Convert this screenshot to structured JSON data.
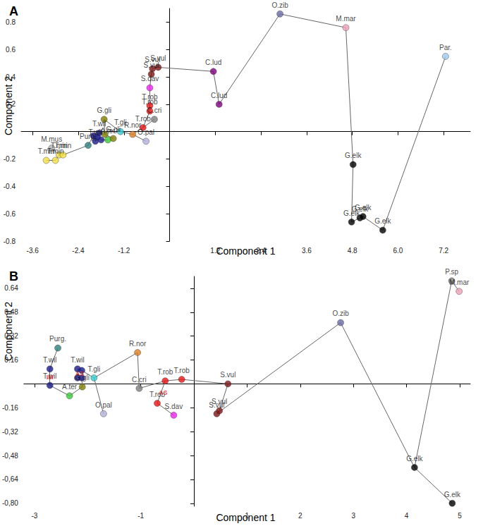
{
  "chart_data": [
    {
      "type": "scatter",
      "title": "A",
      "x_label": "Component 1",
      "y_label": "Component 2",
      "grid": false,
      "xlim": [
        -3.9,
        7.9
      ],
      "ylim": [
        -0.8,
        0.9
      ],
      "xticks": [
        -3.6,
        -2.4,
        -1.2,
        1.2,
        2.4,
        3.6,
        4.8,
        {
          "value": 6,
          "label": "6.0"
        },
        7.2
      ],
      "yticks": [
        -0.8,
        -0.6,
        -0.4,
        -0.2,
        0.2,
        0.4,
        0.6,
        0.8
      ],
      "points": [
        {
          "label": "T.min",
          "x": -2.9,
          "y": -0.17,
          "color": "#f2e040"
        },
        {
          "label": "T.min",
          "x": -3.24,
          "y": -0.21,
          "color": "#f2e040"
        },
        {
          "label": "T.min",
          "x": -3.0,
          "y": -0.21,
          "color": "#f2e040"
        },
        {
          "label": "T.min",
          "x": -2.8,
          "y": -0.17,
          "color": "#f2e040"
        },
        {
          "label": "M.mus",
          "x": -3.1,
          "y": -0.12,
          "color": "#b4b4b4"
        },
        {
          "label": "Purg.",
          "x": -2.14,
          "y": -0.1,
          "color": "#2a8080"
        },
        {
          "label": "T.wil",
          "x": -1.95,
          "y": -0.07,
          "color": "#1a1a8c"
        },
        {
          "label": "T.wil",
          "x": -1.85,
          "y": -0.01,
          "color": "#1a1a8c"
        },
        {
          "label": null,
          "x": -1.9,
          "y": -0.04,
          "color": "#1a1a8c"
        },
        {
          "label": null,
          "x": -2.0,
          "y": -0.03,
          "color": "#1a1a8c"
        },
        {
          "label": null,
          "x": -1.8,
          "y": -0.06,
          "color": "#1a1a8c"
        },
        {
          "label": "A.ter",
          "x": -1.62,
          "y": -0.06,
          "color": "#33cc33"
        },
        {
          "label": "G.gli",
          "x": -1.72,
          "y": 0.09,
          "color": "#808000"
        },
        {
          "label": "G.gli",
          "x": -1.48,
          "y": -0.05,
          "color": "#808000"
        },
        {
          "label": null,
          "x": -1.7,
          "y": -0.02,
          "color": "#808000"
        },
        {
          "label": "T.gli",
          "x": -1.29,
          "y": 0.0,
          "color": "#33cccc"
        },
        {
          "label": "R.nor",
          "x": -0.97,
          "y": -0.02,
          "color": "#e08020"
        },
        {
          "label": "O.pal",
          "x": -0.62,
          "y": -0.07,
          "color": "#b0b0dd"
        },
        {
          "label": "T.rob",
          "x": -0.7,
          "y": 0.03,
          "color": "#ee1111"
        },
        {
          "label": "C.cri",
          "x": -0.4,
          "y": 0.09,
          "color": "#808080"
        },
        {
          "label": "T.rob",
          "x": -0.52,
          "y": 0.15,
          "color": "#ee1111"
        },
        {
          "label": "T.rob",
          "x": -0.52,
          "y": 0.19,
          "color": "#ee1111"
        },
        {
          "label": "S.dav",
          "x": -0.52,
          "y": 0.32,
          "color": "#ee22ee"
        },
        {
          "label": "S.vul",
          "x": -0.48,
          "y": 0.42,
          "color": "#801515"
        },
        {
          "label": "S.vul",
          "x": -0.45,
          "y": 0.46,
          "color": "#801515"
        },
        {
          "label": "S.vul",
          "x": -0.3,
          "y": 0.47,
          "color": "#801515"
        },
        {
          "label": "C.lud",
          "x": 1.15,
          "y": 0.44,
          "color": "#800080"
        },
        {
          "label": "C.lud",
          "x": 1.3,
          "y": 0.2,
          "color": "#800080"
        },
        {
          "label": "O.zib",
          "x": 2.9,
          "y": 0.86,
          "color": "#6a6aa8"
        },
        {
          "label": "M.mar",
          "x": 4.63,
          "y": 0.76,
          "color": "#f0a0b8"
        },
        {
          "label": "G.elk",
          "x": 4.82,
          "y": -0.24,
          "color": "#000000"
        },
        {
          "label": "G.elk",
          "x": 4.78,
          "y": -0.66,
          "color": "#000000"
        },
        {
          "label": "G.elk",
          "x": 5.0,
          "y": -0.63,
          "color": "#000000"
        },
        {
          "label": "G.elk",
          "x": 5.08,
          "y": -0.62,
          "color": "#000000"
        },
        {
          "label": "G.elk",
          "x": 5.6,
          "y": -0.72,
          "color": "#000000"
        },
        {
          "label": "Par.",
          "x": 7.25,
          "y": 0.55,
          "color": "#a0c8f0"
        }
      ],
      "edges": [
        [
          1,
          2
        ],
        [
          2,
          0
        ],
        [
          0,
          3
        ],
        [
          4,
          0
        ],
        [
          3,
          5
        ],
        [
          5,
          9
        ],
        [
          9,
          6
        ],
        [
          6,
          8
        ],
        [
          8,
          7
        ],
        [
          8,
          10
        ],
        [
          10,
          11
        ],
        [
          7,
          14
        ],
        [
          14,
          12
        ],
        [
          14,
          13
        ],
        [
          12,
          15
        ],
        [
          15,
          16
        ],
        [
          16,
          17
        ],
        [
          16,
          18
        ],
        [
          18,
          19
        ],
        [
          18,
          20
        ],
        [
          20,
          21
        ],
        [
          21,
          22
        ],
        [
          22,
          23
        ],
        [
          23,
          24
        ],
        [
          24,
          25
        ],
        [
          25,
          26
        ],
        [
          26,
          27
        ],
        [
          27,
          28
        ],
        [
          28,
          29
        ],
        [
          29,
          30
        ],
        [
          30,
          31
        ],
        [
          31,
          32
        ],
        [
          32,
          33
        ],
        [
          33,
          34
        ],
        [
          34,
          35
        ]
      ]
    },
    {
      "type": "scatter",
      "title": "B",
      "x_label": "Component 1",
      "y_label": "Component 2",
      "grid": false,
      "xlim": [
        -3.2,
        5.2
      ],
      "ylim": [
        -0.82,
        0.72
      ],
      "xticks": [
        -3,
        -1,
        1,
        2,
        3,
        4,
        5
      ],
      "yticks": [
        {
          "value": -0.8,
          "label": "-0,80"
        },
        {
          "value": -0.64,
          "label": "-0,64"
        },
        {
          "value": -0.48,
          "label": "-0,48"
        },
        {
          "value": -0.32,
          "label": "-0,32"
        },
        -0.16,
        0.16,
        0.32,
        0.48,
        0.64
      ],
      "points": [
        {
          "label": "Purg.",
          "x": -2.56,
          "y": 0.24,
          "color": "#2a8080"
        },
        {
          "label": "T.wil",
          "x": -2.71,
          "y": 0.1,
          "color": "#1a1a8c"
        },
        {
          "label": "T.wil",
          "x": -2.71,
          "y": -0.01,
          "color": "#1a1a8c"
        },
        {
          "label": "T.wil",
          "x": -2.19,
          "y": 0.1,
          "color": "#1a1a8c"
        },
        {
          "label": null,
          "x": -2.11,
          "y": 0.09,
          "color": "#1a1a8c"
        },
        {
          "label": null,
          "x": -2.19,
          "y": 0.04,
          "color": "#1a1a8c"
        },
        {
          "label": null,
          "x": -2.11,
          "y": 0.04,
          "color": "#1a1a8c"
        },
        {
          "label": "G.gli",
          "x": -2.1,
          "y": -0.02,
          "color": "#808000"
        },
        {
          "label": "A.ter",
          "x": -2.34,
          "y": -0.08,
          "color": "#33cc33"
        },
        {
          "label": "T.gli",
          "x": -1.88,
          "y": 0.04,
          "color": "#33cccc"
        },
        {
          "label": "O.pal",
          "x": -1.7,
          "y": -0.2,
          "color": "#b0b0dd"
        },
        {
          "label": "R.nor",
          "x": -1.06,
          "y": 0.21,
          "color": "#e08020"
        },
        {
          "label": "C.cri",
          "x": -1.03,
          "y": -0.03,
          "color": "#808080"
        },
        {
          "label": "T.rob",
          "x": -0.54,
          "y": 0.02,
          "color": "#ee1111"
        },
        {
          "label": "T.rob",
          "x": -0.23,
          "y": 0.03,
          "color": "#ee1111"
        },
        {
          "label": "T.rob",
          "x": -0.69,
          "y": -0.13,
          "color": "#ee1111"
        },
        {
          "label": "S.dav",
          "x": -0.38,
          "y": -0.21,
          "color": "#ee22ee"
        },
        {
          "label": "S.vul",
          "x": 0.64,
          "y": 0.0,
          "color": "#801515"
        },
        {
          "label": "S.vul",
          "x": 0.43,
          "y": -0.2,
          "color": "#801515"
        },
        {
          "label": "S.vul",
          "x": 0.48,
          "y": -0.18,
          "color": "#801515"
        },
        {
          "label": "O.zib",
          "x": 2.76,
          "y": 0.41,
          "color": "#6a6aa8"
        },
        {
          "label": "G.elk",
          "x": 4.15,
          "y": -0.56,
          "color": "#000000"
        },
        {
          "label": "G.elk",
          "x": 4.86,
          "y": -0.8,
          "color": "#000000"
        },
        {
          "label": "P.sp",
          "x": 4.85,
          "y": 0.69,
          "color": "#808080"
        },
        {
          "label": "M.mar",
          "x": 4.99,
          "y": 0.62,
          "color": "#f0a0b8"
        }
      ],
      "edges": [
        [
          0,
          1
        ],
        [
          1,
          2
        ],
        [
          2,
          8
        ],
        [
          8,
          7
        ],
        [
          7,
          6
        ],
        [
          6,
          4
        ],
        [
          4,
          3
        ],
        [
          3,
          5
        ],
        [
          4,
          9
        ],
        [
          9,
          10
        ],
        [
          9,
          11
        ],
        [
          11,
          12
        ],
        [
          12,
          13
        ],
        [
          13,
          14
        ],
        [
          13,
          15
        ],
        [
          15,
          16
        ],
        [
          14,
          17
        ],
        [
          17,
          19
        ],
        [
          19,
          18
        ],
        [
          18,
          20
        ],
        [
          20,
          21
        ],
        [
          21,
          22
        ],
        [
          21,
          23
        ],
        [
          23,
          24
        ]
      ],
      "annotations": [
        {
          "text": "IM",
          "x": -2.71,
          "y": 0.045,
          "color": "#dd2222"
        },
        {
          "text": "AS",
          "x": -2.15,
          "y": 0.07,
          "color": "#dd2222"
        },
        {
          "text": "AS",
          "x": -0.58,
          "y": -0.06,
          "color": "#dd2222"
        }
      ]
    }
  ]
}
